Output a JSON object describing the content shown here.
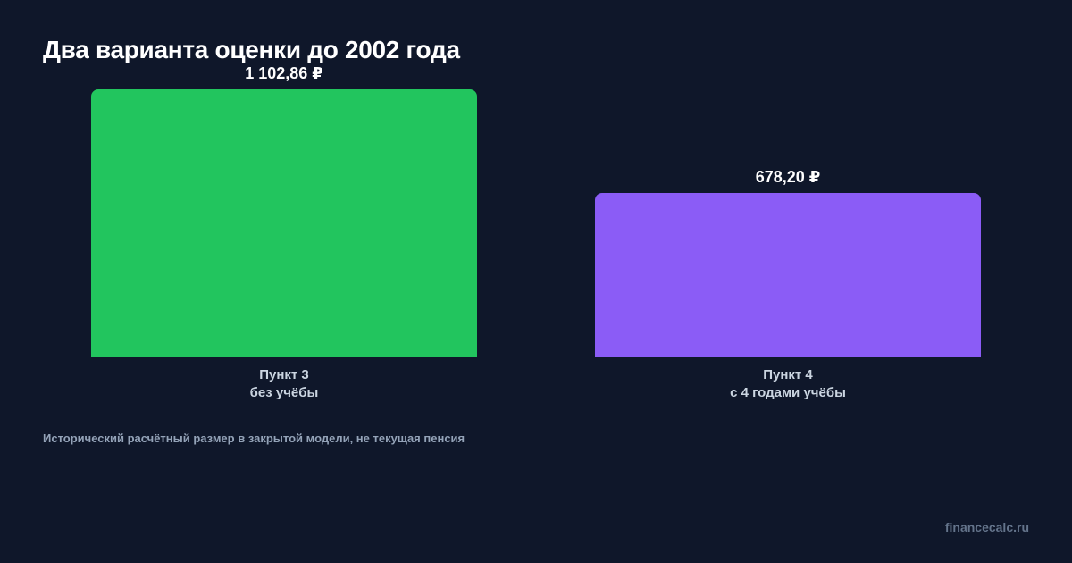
{
  "chart_data": {
    "type": "bar",
    "title": "Два варианта оценки до 2002 года",
    "categories": [
      {
        "line1": "Пункт 3",
        "line2": "без учёбы"
      },
      {
        "line1": "Пункт 4",
        "line2": "с 4 годами учёбы"
      }
    ],
    "values": [
      1102.86,
      678.2
    ],
    "value_labels": [
      "1 102,86 ₽",
      "678,20 ₽"
    ],
    "colors": [
      "#22c55e",
      "#8b5cf6"
    ],
    "xlabel": "",
    "ylabel": "",
    "ylim": [
      0,
      1102.86
    ],
    "grid": false
  },
  "footnote": "Исторический расчётный размер в закрытой модели, не текущая пенсия",
  "brand": "financecalc.ru",
  "theme": {
    "background": "#0f172a",
    "title_color": "#ffffff",
    "category_label_color": "#cbd5e1",
    "footnote_color": "#94a3b8",
    "brand_color": "#64748b"
  }
}
